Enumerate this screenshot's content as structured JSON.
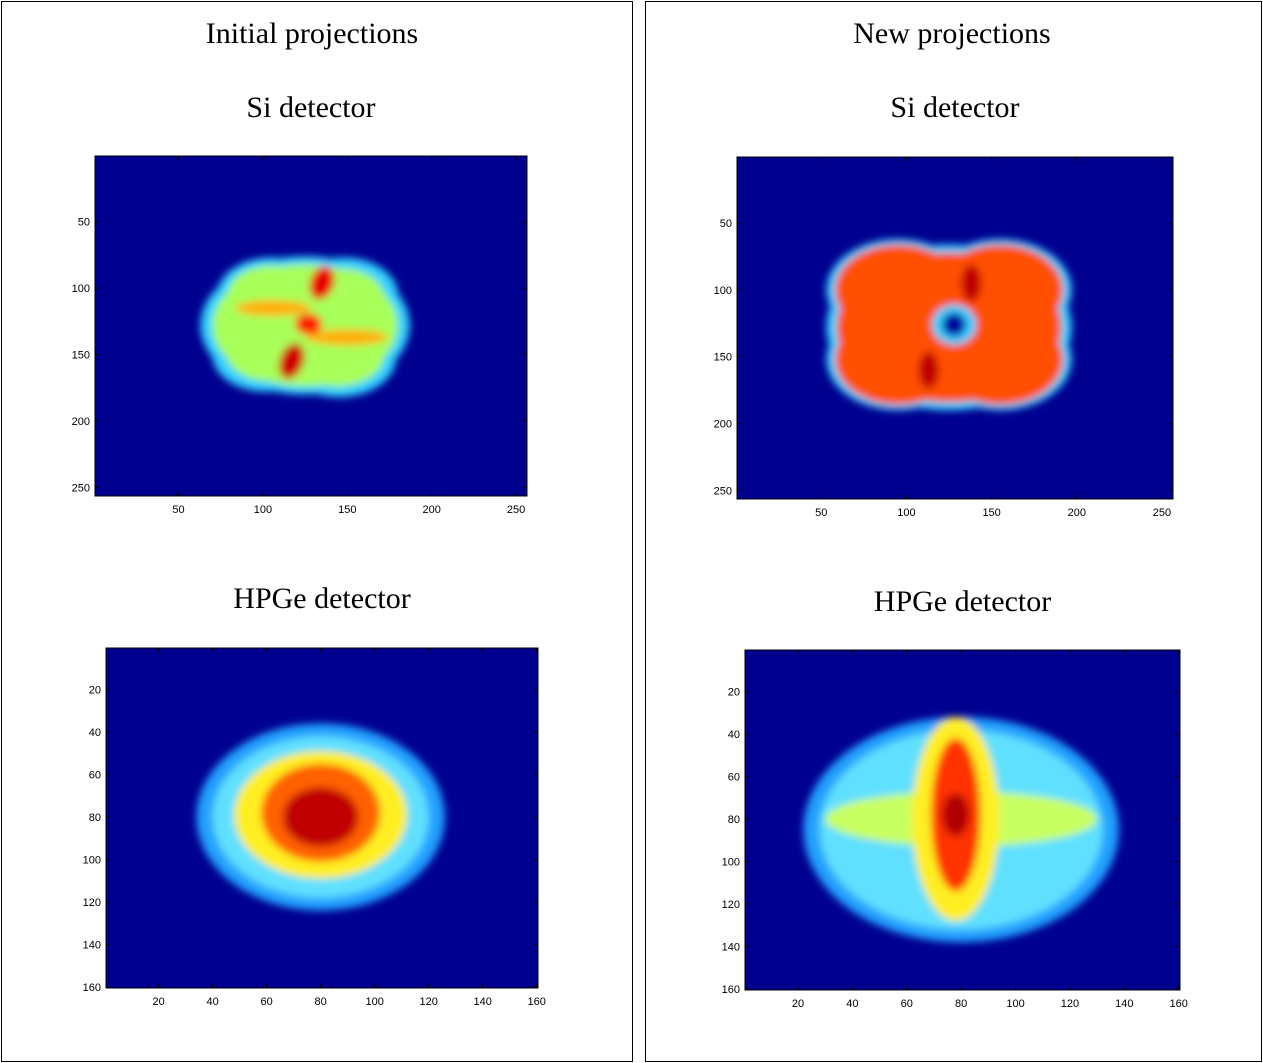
{
  "panel_titles": [
    "Initial projections",
    "New projections"
  ],
  "chart_data": [
    {
      "type": "image",
      "title": "Si detector",
      "xlim": [
        0.5,
        256.5
      ],
      "ylim": [
        0.5,
        256.5
      ],
      "y_reversed": true,
      "xticks": [
        50,
        100,
        150,
        200,
        250
      ],
      "yticks": [
        50,
        100,
        150,
        200,
        250
      ]
    },
    {
      "type": "image",
      "title": "HPGe detector",
      "xlim": [
        0.5,
        160.5
      ],
      "ylim": [
        0.5,
        160.5
      ],
      "y_reversed": true,
      "xticks": [
        20,
        40,
        60,
        80,
        100,
        120,
        140,
        160
      ],
      "yticks": [
        20,
        40,
        60,
        80,
        100,
        120,
        140,
        160
      ]
    },
    {
      "type": "image",
      "title": "Si detector",
      "xlim": [
        0.5,
        256.5
      ],
      "ylim": [
        0.5,
        256.5
      ],
      "y_reversed": true,
      "xticks": [
        50,
        100,
        150,
        200,
        250
      ],
      "yticks": [
        50,
        100,
        150,
        200,
        250
      ]
    },
    {
      "type": "image",
      "title": "HPGe detector",
      "xlim": [
        0.5,
        160.5
      ],
      "ylim": [
        0.5,
        160.5
      ],
      "y_reversed": true,
      "xticks": [
        20,
        40,
        60,
        80,
        100,
        120,
        140,
        160
      ],
      "yticks": [
        20,
        40,
        60,
        80,
        100,
        120,
        140,
        160
      ]
    }
  ]
}
